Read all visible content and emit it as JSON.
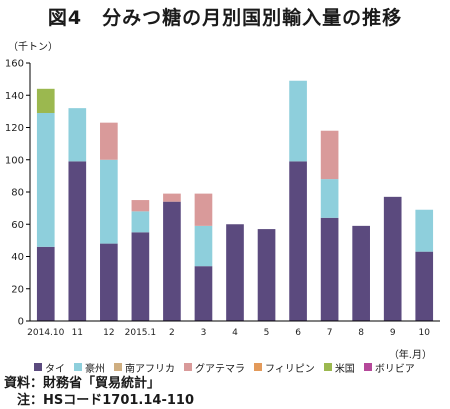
{
  "title": "図4　分みつ糖の月別国別輸入量の推移",
  "y_unit_label": "（千トン）",
  "x_unit_label": "（年.月）",
  "notes": {
    "source": "資料：財務省「貿易統計」",
    "note": "注：HSコード1701.14-110"
  },
  "chart_data": {
    "type": "bar",
    "stacked": true,
    "title": "図4　分みつ糖の月別国別輸入量の推移",
    "ylabel": "（千トン）",
    "xlabel": "（年.月）",
    "ylim": [
      0,
      160
    ],
    "yticks": [
      0,
      20,
      40,
      60,
      80,
      100,
      120,
      140,
      160
    ],
    "grid": false,
    "legend_position": "bottom",
    "categories": [
      "2014.10",
      "11",
      "12",
      "2015.1",
      "2",
      "3",
      "4",
      "5",
      "6",
      "7",
      "8",
      "9",
      "10"
    ],
    "series": [
      {
        "name": "タイ",
        "color": "#5b4a7e",
        "values": [
          46,
          99,
          48,
          55,
          74,
          34,
          60,
          57,
          99,
          64,
          59,
          77,
          43
        ]
      },
      {
        "name": "豪州",
        "color": "#8ecfdc",
        "values": [
          83,
          33,
          52,
          13,
          0,
          25,
          0,
          0,
          50,
          24,
          0,
          0,
          26
        ]
      },
      {
        "name": "南アフリカ",
        "color": "#cfae80",
        "values": [
          0,
          0,
          0,
          0,
          0,
          0,
          0,
          0,
          0,
          0,
          0,
          0,
          0
        ]
      },
      {
        "name": "グアテマラ",
        "color": "#d99a9a",
        "values": [
          0,
          0,
          23,
          7,
          5,
          20,
          0,
          0,
          0,
          30,
          0,
          0,
          0
        ]
      },
      {
        "name": "フィリピン",
        "color": "#e39a5a",
        "values": [
          0,
          0,
          0,
          0,
          0,
          0,
          0,
          0,
          0,
          0,
          0,
          0,
          0
        ]
      },
      {
        "name": "米国",
        "color": "#9bb84f",
        "values": [
          15,
          0,
          0,
          0,
          0,
          0,
          0,
          0,
          0,
          0,
          0,
          0,
          0
        ]
      },
      {
        "name": "ボリビア",
        "color": "#b5489a",
        "values": [
          0,
          0,
          0,
          0,
          0,
          0,
          0,
          0,
          0,
          0,
          0,
          0,
          0
        ]
      }
    ]
  }
}
